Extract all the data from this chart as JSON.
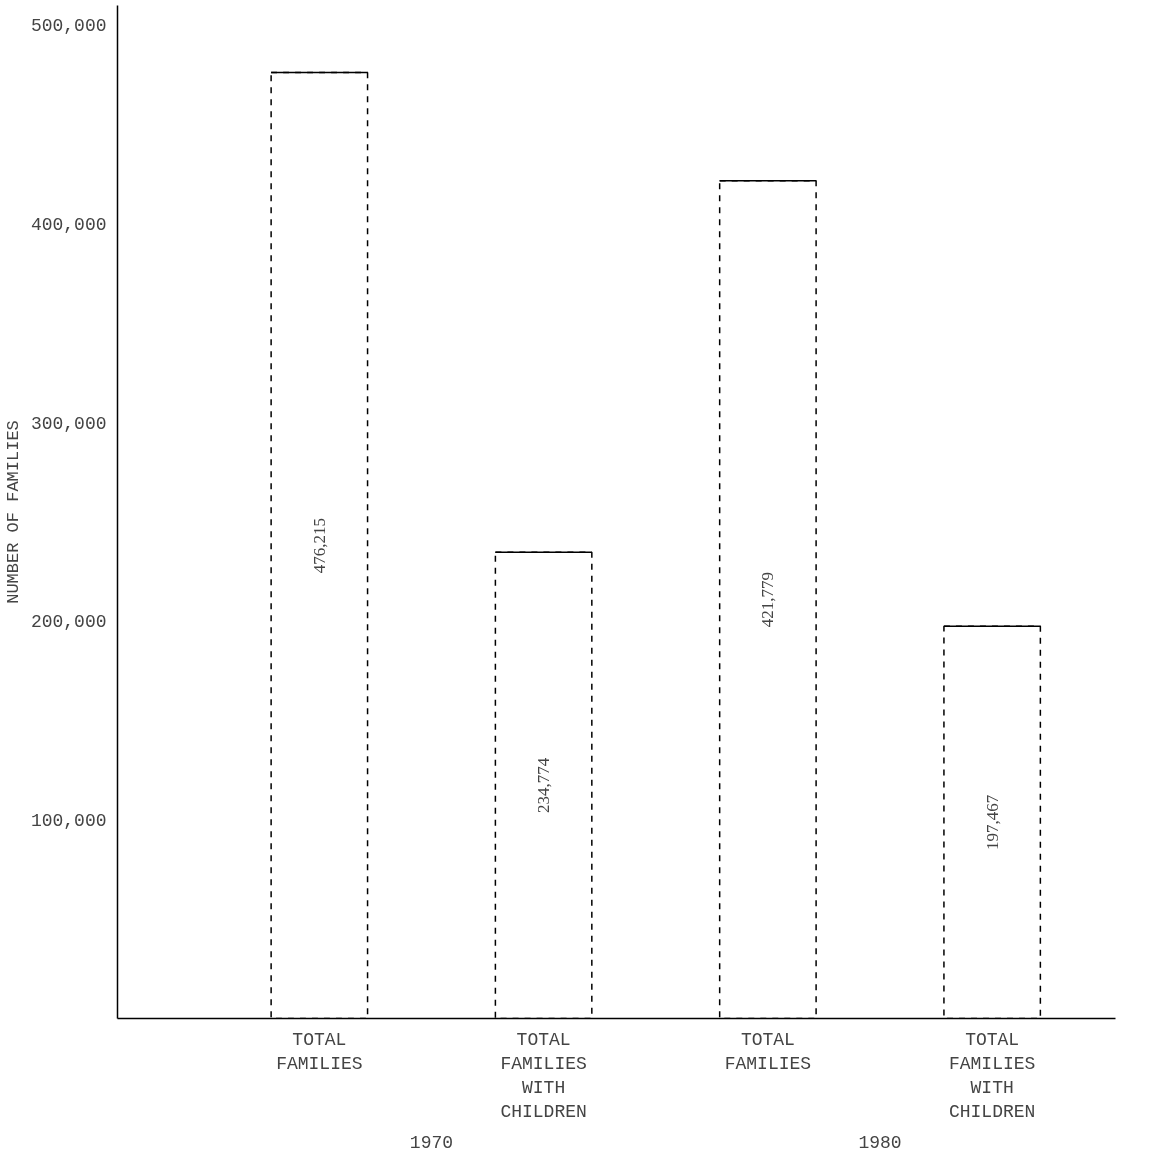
{
  "chart_data": {
    "type": "bar",
    "ylabel": "NUMBER OF FAMILIES",
    "categories": [
      "TOTAL FAMILIES",
      "TOTAL FAMILIES WITH CHILDREN",
      "TOTAL FAMILIES",
      "TOTAL FAMILIES WITH CHILDREN"
    ],
    "values": [
      476215,
      234774,
      421779,
      197467
    ],
    "colors": [
      "#ffffff",
      "#ffffff",
      "#ffffff",
      "#ffffff"
    ],
    "value_labels": [
      "476,215",
      "234,774",
      "421,779",
      "197,467"
    ],
    "line_style": "dashed",
    "ylim": [
      0,
      510000
    ],
    "yticks": [
      {
        "value": 100000,
        "label": "100,000"
      },
      {
        "value": 200000,
        "label": "200,000"
      },
      {
        "value": 300000,
        "label": "300,000"
      },
      {
        "value": 400000,
        "label": "400,000"
      },
      {
        "value": 500000,
        "label": "500,000"
      }
    ],
    "annotations": [
      "1970",
      "1980"
    ],
    "grid": false
  }
}
